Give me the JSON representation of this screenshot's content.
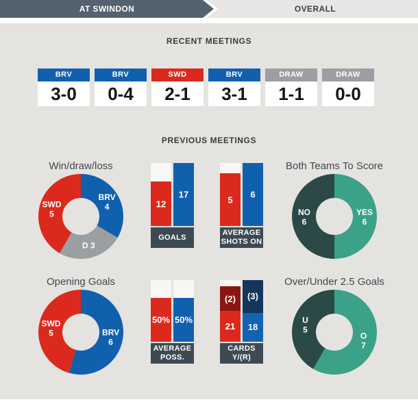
{
  "tabs": {
    "active": "AT SWINDON",
    "inactive": "OVERALL"
  },
  "headings": {
    "recent": "RECENT MEETINGS",
    "previous": "PREVIOUS MEETINGS"
  },
  "colors": {
    "home_red": "#DB2A1D",
    "away_blue": "#1160AE",
    "draw_gray": "#9B9FA2",
    "slate_dark": "#3D4A54",
    "tab_slate": "#53626E",
    "teal_dark": "#2B4946",
    "teal_green": "#3BA188",
    "maroon": "#8B1512",
    "navy": "#13365C",
    "track_white": "#F8F7F5"
  },
  "recent_meetings": [
    {
      "winner": "BRV",
      "score": "3-0",
      "color": "#1160AE"
    },
    {
      "winner": "BRV",
      "score": "0-4",
      "color": "#1160AE"
    },
    {
      "winner": "SWD",
      "score": "2-1",
      "color": "#DB2A1D"
    },
    {
      "winner": "BRV",
      "score": "3-1",
      "color": "#1160AE"
    },
    {
      "winner": "DRAW",
      "score": "1-1",
      "color": "#9B9FA2"
    },
    {
      "winner": "DRAW",
      "score": "0-0",
      "color": "#9B9FA2"
    }
  ],
  "chart_data": [
    {
      "type": "pie",
      "id": "win-draw-loss",
      "title": "Win/draw/loss",
      "donut": true,
      "slices": [
        {
          "label": "BRV",
          "value": 4,
          "color": "#1160AE"
        },
        {
          "label": "D",
          "value": 3,
          "color": "#9B9FA2",
          "inline_label": true
        },
        {
          "label": "SWD",
          "value": 5,
          "color": "#DB2A1D"
        }
      ]
    },
    {
      "type": "bar",
      "id": "goals",
      "label_lines": [
        "GOALS"
      ],
      "bars": [
        {
          "name": "SWD",
          "value": 12,
          "display": "12",
          "color": "#DB2A1D",
          "fill_pct": 70.6
        },
        {
          "name": "BRV",
          "value": 17,
          "display": "17",
          "color": "#1160AE",
          "fill_pct": 100
        }
      ]
    },
    {
      "type": "bar",
      "id": "average-shots-on",
      "label_lines": [
        "AVERAGE",
        "SHOTS ON"
      ],
      "bars": [
        {
          "name": "SWD",
          "value": 5,
          "display": "5",
          "color": "#DB2A1D",
          "fill_pct": 83.3
        },
        {
          "name": "BRV",
          "value": 6,
          "display": "6",
          "color": "#1160AE",
          "fill_pct": 100
        }
      ]
    },
    {
      "type": "pie",
      "id": "both-teams-to-score",
      "title": "Both Teams To Score",
      "donut": true,
      "slices": [
        {
          "label": "YES",
          "value": 6,
          "color": "#3BA188"
        },
        {
          "label": "NO",
          "value": 6,
          "color": "#2B4946"
        }
      ]
    },
    {
      "type": "pie",
      "id": "opening-goals",
      "title": "Opening Goals",
      "donut": true,
      "slices": [
        {
          "label": "BRV",
          "value": 6,
          "color": "#1160AE"
        },
        {
          "label": "SWD",
          "value": 5,
          "color": "#DB2A1D"
        }
      ]
    },
    {
      "type": "bar",
      "id": "average-possession",
      "label_lines": [
        "AVERAGE",
        "POSS."
      ],
      "bars": [
        {
          "name": "SWD",
          "value": 50,
          "display": "50%",
          "color": "#DB2A1D",
          "fill_pct": 71
        },
        {
          "name": "BRV",
          "value": 50,
          "display": "50%",
          "color": "#1160AE",
          "fill_pct": 71
        }
      ]
    },
    {
      "type": "stacked-bar",
      "id": "cards-yellow-red",
      "label_lines": [
        "CARDS",
        "Y/(R)"
      ],
      "bars": [
        {
          "name": "SWD",
          "yellow": 21,
          "red": 2,
          "gap_pct": 10,
          "segments": [
            {
              "text": "(2)",
              "value": 2,
              "color": "#8B1512",
              "pct": 40
            },
            {
              "text": "21",
              "value": 21,
              "color": "#DB2A1D",
              "pct": 50
            }
          ]
        },
        {
          "name": "BRV",
          "yellow": 18,
          "red": 3,
          "gap_pct": 0,
          "segments": [
            {
              "text": "(3)",
              "value": 3,
              "color": "#13365C",
              "pct": 53
            },
            {
              "text": "18",
              "value": 18,
              "color": "#1263B2",
              "pct": 47
            }
          ]
        }
      ]
    },
    {
      "type": "pie",
      "id": "over-under-2-5-goals",
      "title": "Over/Under 2.5 Goals",
      "donut": true,
      "slices": [
        {
          "label": "O",
          "value": 7,
          "color": "#3BA188"
        },
        {
          "label": "U",
          "value": 5,
          "color": "#2B4946"
        }
      ]
    }
  ]
}
